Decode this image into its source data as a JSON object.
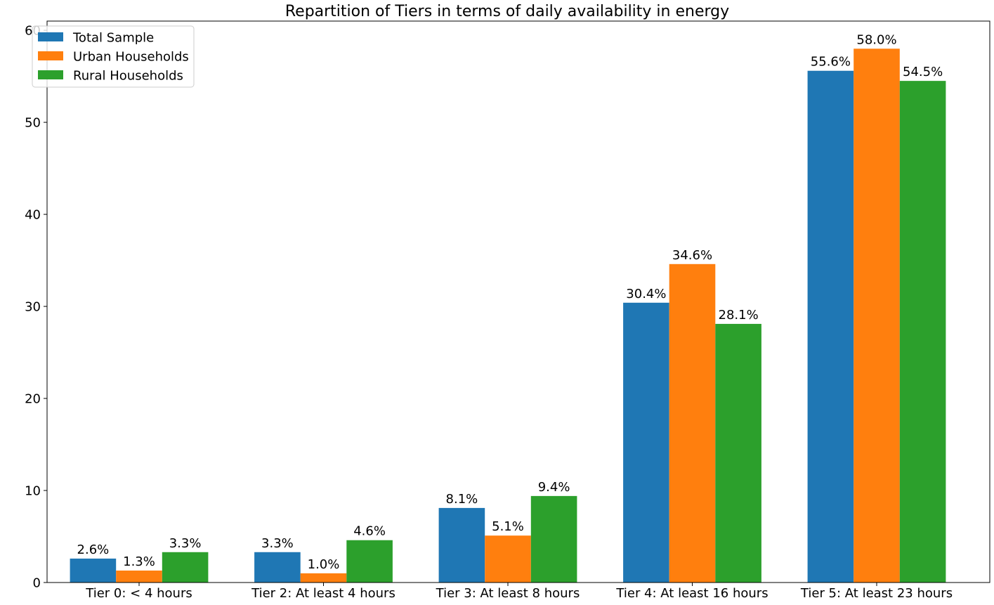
{
  "chart_data": {
    "type": "bar",
    "title": "Repartition of Tiers in terms of daily availability in energy",
    "xlabel": "",
    "ylabel": "",
    "categories": [
      "Tier 0: < 4 hours",
      "Tier 2: At least 4 hours",
      "Tier 3: At least 8 hours",
      "Tier 4: At least 16 hours",
      "Tier 5: At least 23 hours"
    ],
    "series": [
      {
        "name": "Total Sample",
        "color": "#1f77b4",
        "values": [
          2.6,
          3.3,
          8.1,
          30.4,
          55.6
        ],
        "labels": [
          "2.6%",
          "3.3%",
          "8.1%",
          "30.4%",
          "55.6%"
        ]
      },
      {
        "name": "Urban Households",
        "color": "#ff7f0e",
        "values": [
          1.3,
          1.0,
          5.1,
          34.6,
          58.0
        ],
        "labels": [
          "1.3%",
          "1.0%",
          "5.1%",
          "34.6%",
          "58.0%"
        ]
      },
      {
        "name": "Rural Households",
        "color": "#2ca02c",
        "values": [
          3.3,
          4.6,
          9.4,
          28.1,
          54.5
        ],
        "labels": [
          "3.3%",
          "4.6%",
          "9.4%",
          "28.1%",
          "54.5%"
        ]
      }
    ],
    "ylim": [
      0,
      61
    ],
    "yticks": [
      0,
      10,
      20,
      30,
      40,
      50,
      60
    ],
    "ytick_labels": [
      "0",
      "10",
      "20",
      "30",
      "40",
      "50",
      "60"
    ],
    "grid": false,
    "legend_position": "top-left"
  }
}
